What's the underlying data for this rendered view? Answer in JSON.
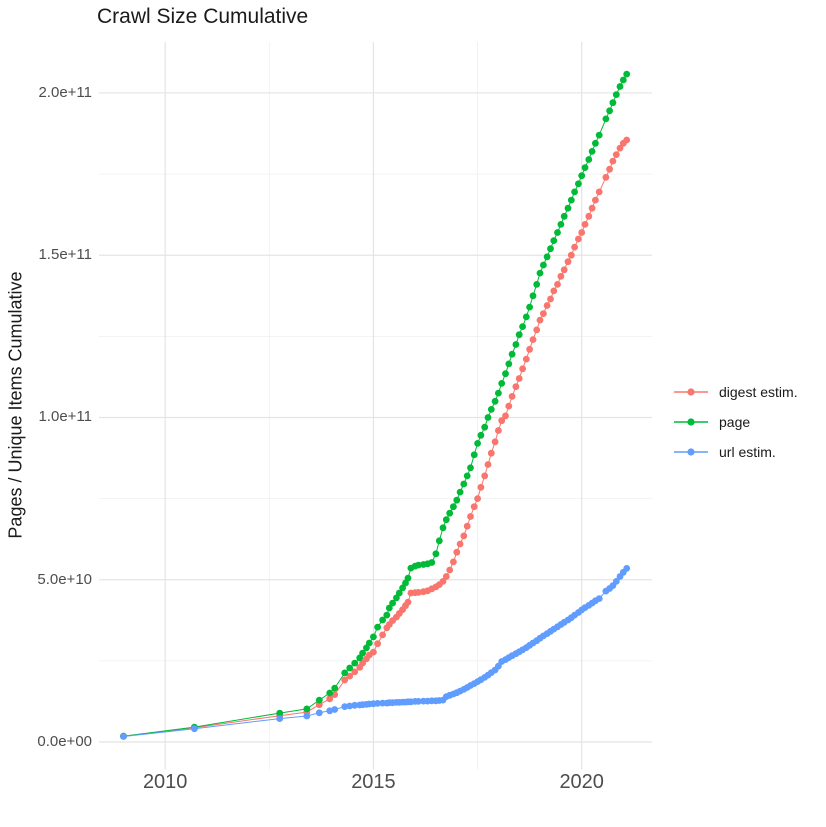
{
  "chart_data": {
    "type": "line",
    "markers": true,
    "title": "Crawl Size Cumulative",
    "xlabel": "",
    "ylabel": "Pages / Unique Items Cumulative",
    "unit_note": "values_e9 and *_e9 fields are in units of 1e9 (multiply by 1e9 for absolute counts)",
    "grid": true,
    "legend_position": "right",
    "xlim": [
      2008.4,
      2021.7
    ],
    "ylim_e9": [
      0,
      206
    ],
    "x_ticks": [
      {
        "label": "2010",
        "value": 2010
      },
      {
        "label": "2015",
        "value": 2015
      },
      {
        "label": "2020",
        "value": 2020
      }
    ],
    "y_ticks": [
      {
        "label": "0.0e+00",
        "value_e9": 0
      },
      {
        "label": "5.0e+10",
        "value_e9": 50
      },
      {
        "label": "1.0e+11",
        "value_e9": 100
      },
      {
        "label": "1.5e+11",
        "value_e9": 150
      },
      {
        "label": "2.0e+11",
        "value_e9": 200
      }
    ],
    "x_minor": [
      2012.5,
      2017.5
    ],
    "y_minor_e9": [
      25,
      75,
      125,
      175
    ],
    "x": [
      2009.0,
      2010.7,
      2012.75,
      2013.4,
      2013.7,
      2013.95,
      2014.07,
      2014.31,
      2014.43,
      2014.55,
      2014.67,
      2014.74,
      2014.83,
      2014.9,
      2015.0,
      2015.1,
      2015.22,
      2015.32,
      2015.38,
      2015.46,
      2015.55,
      2015.62,
      2015.7,
      2015.77,
      2015.83,
      2015.9,
      2016.0,
      2016.08,
      2016.2,
      2016.3,
      2016.4,
      2016.5,
      2016.58,
      2016.67,
      2016.75,
      2016.83,
      2016.92,
      2017.0,
      2017.08,
      2017.17,
      2017.25,
      2017.33,
      2017.42,
      2017.5,
      2017.58,
      2017.67,
      2017.75,
      2017.83,
      2017.92,
      2018.0,
      2018.08,
      2018.17,
      2018.25,
      2018.33,
      2018.42,
      2018.5,
      2018.58,
      2018.67,
      2018.75,
      2018.83,
      2018.92,
      2019.0,
      2019.08,
      2019.17,
      2019.25,
      2019.33,
      2019.42,
      2019.5,
      2019.58,
      2019.67,
      2019.75,
      2019.83,
      2019.92,
      2020.0,
      2020.08,
      2020.17,
      2020.25,
      2020.33,
      2020.42,
      2020.58,
      2020.67,
      2020.75,
      2020.83,
      2020.92,
      2021.0,
      2021.08
    ],
    "series": [
      {
        "name": "digest estim.",
        "color": "#F8766D",
        "values_e9": [
          1.8,
          4.4,
          8.1,
          9.2,
          11.5,
          13.3,
          14.6,
          19.1,
          20.3,
          21.6,
          23.0,
          24.3,
          25.6,
          26.8,
          27.7,
          30.3,
          33.0,
          35.2,
          36.2,
          37.4,
          38.5,
          39.6,
          40.8,
          42.0,
          43.1,
          45.9,
          46.0,
          46.1,
          46.3,
          46.6,
          47.2,
          47.8,
          48.5,
          49.5,
          51.0,
          53.0,
          55.5,
          58.5,
          61.0,
          63.5,
          66.5,
          69.5,
          72.5,
          75.0,
          78.5,
          82.0,
          85.5,
          89.0,
          92.5,
          96.0,
          99.0,
          100.5,
          103.5,
          106.5,
          109.5,
          112.0,
          115.0,
          118.0,
          121.0,
          124.0,
          127.0,
          130.0,
          132.0,
          134.5,
          136.5,
          139.0,
          141.0,
          143.5,
          145.5,
          148.0,
          150.0,
          152.5,
          155.0,
          157.0,
          159.5,
          162.0,
          164.5,
          167.0,
          169.5,
          174.0,
          176.5,
          179.0,
          181.0,
          183.0,
          184.5,
          185.5
        ]
      },
      {
        "name": "page",
        "color": "#00BA38",
        "values_e9": [
          1.8,
          4.6,
          8.9,
          10.2,
          12.9,
          15.1,
          16.6,
          21.3,
          22.8,
          24.3,
          25.9,
          27.4,
          29.0,
          30.5,
          32.4,
          35.4,
          37.6,
          39.1,
          41.3,
          42.8,
          44.4,
          45.9,
          47.5,
          49.0,
          50.5,
          53.6,
          54.2,
          54.5,
          54.7,
          54.9,
          55.3,
          58.0,
          62.0,
          66.0,
          68.5,
          70.5,
          72.5,
          74.5,
          77.0,
          79.5,
          82.0,
          84.5,
          88.5,
          92.0,
          94.5,
          97.0,
          100.0,
          102.5,
          105.0,
          107.5,
          110.5,
          113.5,
          116.5,
          119.5,
          122.5,
          125.5,
          128.0,
          131.0,
          134.0,
          137.5,
          141.0,
          144.5,
          147.0,
          149.5,
          152.0,
          154.5,
          157.0,
          159.5,
          162.0,
          164.5,
          167.0,
          169.5,
          172.0,
          174.5,
          177.0,
          179.5,
          182.0,
          184.5,
          187.0,
          192.0,
          194.5,
          197.0,
          199.5,
          202.0,
          204.0,
          205.8
        ]
      },
      {
        "name": "url estim.",
        "color": "#619CFF",
        "values_e9": [
          1.7,
          4.1,
          7.2,
          8.0,
          9.0,
          9.6,
          10.0,
          10.9,
          11.1,
          11.3,
          11.4,
          11.5,
          11.6,
          11.7,
          11.8,
          11.9,
          12.0,
          12.0,
          12.1,
          12.1,
          12.2,
          12.2,
          12.3,
          12.3,
          12.4,
          12.4,
          12.5,
          12.5,
          12.6,
          12.6,
          12.7,
          12.7,
          12.8,
          12.9,
          14.0,
          14.4,
          14.8,
          15.2,
          15.7,
          16.2,
          16.8,
          17.4,
          18.0,
          18.6,
          19.2,
          19.9,
          20.6,
          21.4,
          22.2,
          23.4,
          24.8,
          25.4,
          26.0,
          26.6,
          27.2,
          27.8,
          28.4,
          29.1,
          29.8,
          30.5,
          31.2,
          32.0,
          32.7,
          33.4,
          34.1,
          34.8,
          35.5,
          36.2,
          36.9,
          37.6,
          38.3,
          39.1,
          39.9,
          40.7,
          41.4,
          42.1,
          42.8,
          43.5,
          44.2,
          46.5,
          47.3,
          48.2,
          49.5,
          51.0,
          52.3,
          53.5
        ]
      }
    ],
    "style": {
      "grid_major_color": "#e4e4e4",
      "grid_minor_color": "#efefef",
      "axis_text_color": "#4d4d4d",
      "text_color": "#1a1a1a",
      "background": "#ffffff"
    }
  }
}
